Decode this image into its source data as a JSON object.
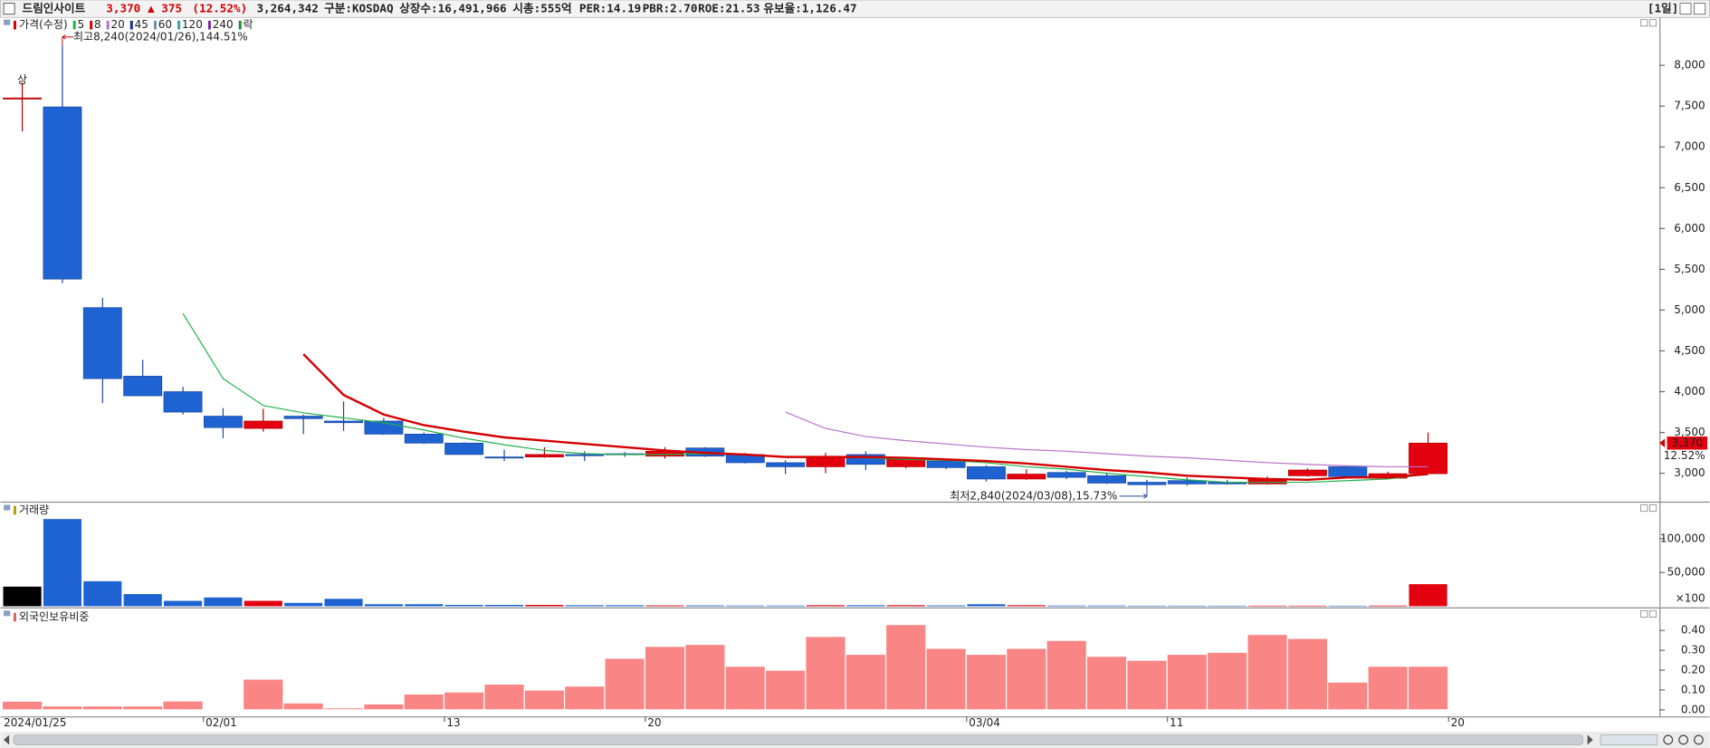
{
  "header": {
    "title": "드림인사이트",
    "price": "3,370",
    "change": "▲ 375",
    "change_pct": "(12.52%)",
    "volume": "3,264,342",
    "market": "구분:KOSDAQ",
    "shares": "상장수:16,491,966",
    "cap": "시총:555억",
    "per": "PER:14.19",
    "pbr": "PBR:2.70",
    "roe": "ROE:21.53",
    "reserve": "유보율:1,126.47",
    "period": "[1일]"
  },
  "chart_data": [
    {
      "type": "candlestick",
      "legend_title": "가격(수정)",
      "legend_color": "#d40000",
      "up_color": "#e3000f",
      "down_color": "#1f63d3",
      "open": [
        7600,
        7490,
        5030,
        4190,
        4000,
        3700,
        3550,
        3700,
        3640,
        3640,
        3480,
        3370,
        3200,
        3200,
        3230,
        3240,
        3210,
        3310,
        3230,
        3130,
        3080,
        3230,
        3080,
        3150,
        3080,
        2930,
        3010,
        2970,
        2890,
        2910,
        2890,
        2870,
        2970,
        3080,
        2940,
        2995,
        null
      ],
      "high": [
        7790,
        8240,
        5150,
        4390,
        4060,
        3800,
        3790,
        3720,
        3880,
        3680,
        3500,
        3380,
        3290,
        3320,
        3270,
        3260,
        3320,
        3320,
        3250,
        3160,
        3250,
        3270,
        3200,
        3180,
        3100,
        3050,
        3030,
        3010,
        2920,
        2950,
        2920,
        2960,
        3060,
        3090,
        3020,
        3500,
        null
      ],
      "low": [
        7190,
        5330,
        3860,
        3950,
        3720,
        3430,
        3510,
        3480,
        3520,
        3470,
        3360,
        3230,
        3150,
        3190,
        3150,
        3200,
        3180,
        3200,
        3120,
        2990,
        3000,
        3040,
        3060,
        3050,
        2900,
        2920,
        2930,
        2870,
        2840,
        2850,
        2860,
        2860,
        2960,
        2950,
        2930,
        2990,
        null
      ],
      "close": [
        7600,
        5380,
        4160,
        3950,
        3750,
        3560,
        3640,
        3670,
        3620,
        3480,
        3370,
        3230,
        3190,
        3230,
        3215,
        3230,
        3270,
        3210,
        3130,
        3080,
        3200,
        3110,
        3170,
        3070,
        2930,
        2990,
        2950,
        2880,
        2860,
        2870,
        2870,
        2930,
        3040,
        2960,
        2995,
        3370,
        null
      ],
      "series": [
        {
          "name": "5",
          "color": "#22b14c",
          "values": [
            null,
            null,
            null,
            null,
            4960,
            4160,
            3830,
            3740,
            3680,
            3620,
            3530,
            3430,
            3350,
            3280,
            3240,
            3230,
            3230,
            3240,
            3230,
            3200,
            3200,
            3190,
            3170,
            3160,
            3130,
            3080,
            3050,
            3000,
            2960,
            2920,
            2890,
            2890,
            2890,
            2910,
            2930,
            2990,
            null
          ]
        },
        {
          "name": "8",
          "color": "#d40000",
          "values": [
            null,
            null,
            null,
            null,
            null,
            null,
            null,
            4460,
            3960,
            3720,
            3590,
            3510,
            3440,
            3400,
            3360,
            3320,
            3280,
            3250,
            3230,
            3200,
            3200,
            3200,
            3190,
            3170,
            3150,
            3120,
            3080,
            3040,
            3010,
            2970,
            2950,
            2930,
            2920,
            2950,
            2950,
            2990,
            null
          ]
        },
        {
          "name": "20",
          "color": "#b673c8",
          "values": [
            null,
            null,
            null,
            null,
            null,
            null,
            null,
            null,
            null,
            null,
            null,
            null,
            null,
            null,
            null,
            null,
            null,
            null,
            null,
            3750,
            3550,
            3450,
            3400,
            3360,
            3320,
            3290,
            3270,
            3240,
            3210,
            3190,
            3160,
            3130,
            3110,
            3090,
            3080,
            3080,
            null
          ]
        },
        {
          "name": "45",
          "color": "#1c2f8f",
          "values": [
            null,
            null,
            null,
            null,
            null,
            null,
            null,
            null,
            null,
            null,
            null,
            null,
            null,
            null,
            null,
            null,
            null,
            null,
            null,
            null,
            null,
            null,
            null,
            null,
            null,
            null,
            null,
            null,
            null,
            null,
            null,
            null,
            null,
            null,
            null,
            null,
            null
          ]
        },
        {
          "name": "60",
          "color": "#6a8fa8",
          "values": [
            null,
            null,
            null,
            null,
            null,
            null,
            null,
            null,
            null,
            null,
            null,
            null,
            null,
            null,
            null,
            null,
            null,
            null,
            null,
            null,
            null,
            null,
            null,
            null,
            null,
            null,
            null,
            null,
            null,
            null,
            null,
            null,
            null,
            null,
            null,
            null,
            null
          ]
        },
        {
          "name": "120",
          "color": "#3aa0a0",
          "values": [
            null,
            null,
            null,
            null,
            null,
            null,
            null,
            null,
            null,
            null,
            null,
            null,
            null,
            null,
            null,
            null,
            null,
            null,
            null,
            null,
            null,
            null,
            null,
            null,
            null,
            null,
            null,
            null,
            null,
            null,
            null,
            null,
            null,
            null,
            null,
            null,
            null
          ]
        },
        {
          "name": "240",
          "color": "#7a2aa0",
          "values": [
            null,
            null,
            null,
            null,
            null,
            null,
            null,
            null,
            null,
            null,
            null,
            null,
            null,
            null,
            null,
            null,
            null,
            null,
            null,
            null,
            null,
            null,
            null,
            null,
            null,
            null,
            null,
            null,
            null,
            null,
            null,
            null,
            null,
            null,
            null,
            null,
            null
          ]
        }
      ],
      "extra_legend": {
        "name": "락",
        "color": "#1a8c2a"
      },
      "high_note": "최고8,240(2024/01/26),144.51%",
      "low_note": "최저2,840(2024/03/08),15.73%",
      "limit_note": "상",
      "last_label": "3,370",
      "last_pct": "12.52%",
      "ylim": [
        2680,
        8560
      ],
      "yticks": [
        {
          "value": 3000,
          "label": "3,000"
        },
        {
          "value": 3500,
          "label": "3,500"
        },
        {
          "value": 4000,
          "label": "4,000"
        },
        {
          "value": 4500,
          "label": "4,500"
        },
        {
          "value": 5000,
          "label": "5,000"
        },
        {
          "value": 5500,
          "label": "5,500"
        },
        {
          "value": 6000,
          "label": "6,000"
        },
        {
          "value": 6500,
          "label": "6,500"
        },
        {
          "value": 7000,
          "label": "7,000"
        },
        {
          "value": 7500,
          "label": "7,500"
        },
        {
          "value": 8000,
          "label": "8,000"
        }
      ]
    },
    {
      "type": "volume",
      "legend_title": "거래량",
      "legend_color": "#b8a000",
      "up_color": "#e3000f",
      "down_color": "#1f63d3",
      "flat_color": "#000000",
      "values": [
        29000,
        129000,
        37000,
        18000,
        8000,
        13000,
        8000,
        5000,
        11000,
        3000,
        3000,
        2000,
        2000,
        2000,
        1500,
        1500,
        1200,
        1200,
        1000,
        1000,
        1500,
        1500,
        1500,
        1200,
        3000,
        1500,
        1000,
        1000,
        800,
        800,
        800,
        800,
        800,
        800,
        1000,
        32643,
        null
      ],
      "unit": "×100",
      "ylim": [
        0,
        150000
      ],
      "yticks": [
        {
          "value": 50000,
          "label": "50,000"
        },
        {
          "value": 100000,
          "label": "100,000"
        }
      ]
    },
    {
      "type": "bar",
      "legend_title": "외국인보유비중",
      "legend_color": "#e06060",
      "color": "#f98585",
      "categories": [
        "2024/01/25",
        null,
        null,
        null,
        null,
        "02/01",
        null,
        null,
        null,
        null,
        null,
        "13",
        null,
        null,
        null,
        null,
        "20",
        null,
        null,
        null,
        null,
        null,
        null,
        null,
        "03/04",
        null,
        null,
        null,
        null,
        "11",
        null,
        null,
        null,
        null,
        null,
        null,
        "20"
      ],
      "values": [
        0.044,
        0.02,
        0.02,
        0.02,
        0.045,
        0.003,
        0.155,
        0.035,
        0.01,
        0.03,
        0.08,
        0.09,
        0.13,
        0.1,
        0.12,
        0.26,
        0.32,
        0.33,
        0.22,
        0.2,
        0.37,
        0.28,
        0.43,
        0.31,
        0.28,
        0.31,
        0.35,
        0.27,
        0.25,
        0.28,
        0.29,
        0.38,
        0.36,
        0.14,
        0.22,
        0.22,
        null
      ],
      "ylim": [
        0,
        0.5
      ],
      "yticks": [
        {
          "value": 0,
          "label": "0.00"
        },
        {
          "value": 0.1,
          "label": "0.10"
        },
        {
          "value": 0.2,
          "label": "0.20"
        },
        {
          "value": 0.3,
          "label": "0.30"
        },
        {
          "value": 0.4,
          "label": "0.40"
        }
      ]
    }
  ]
}
